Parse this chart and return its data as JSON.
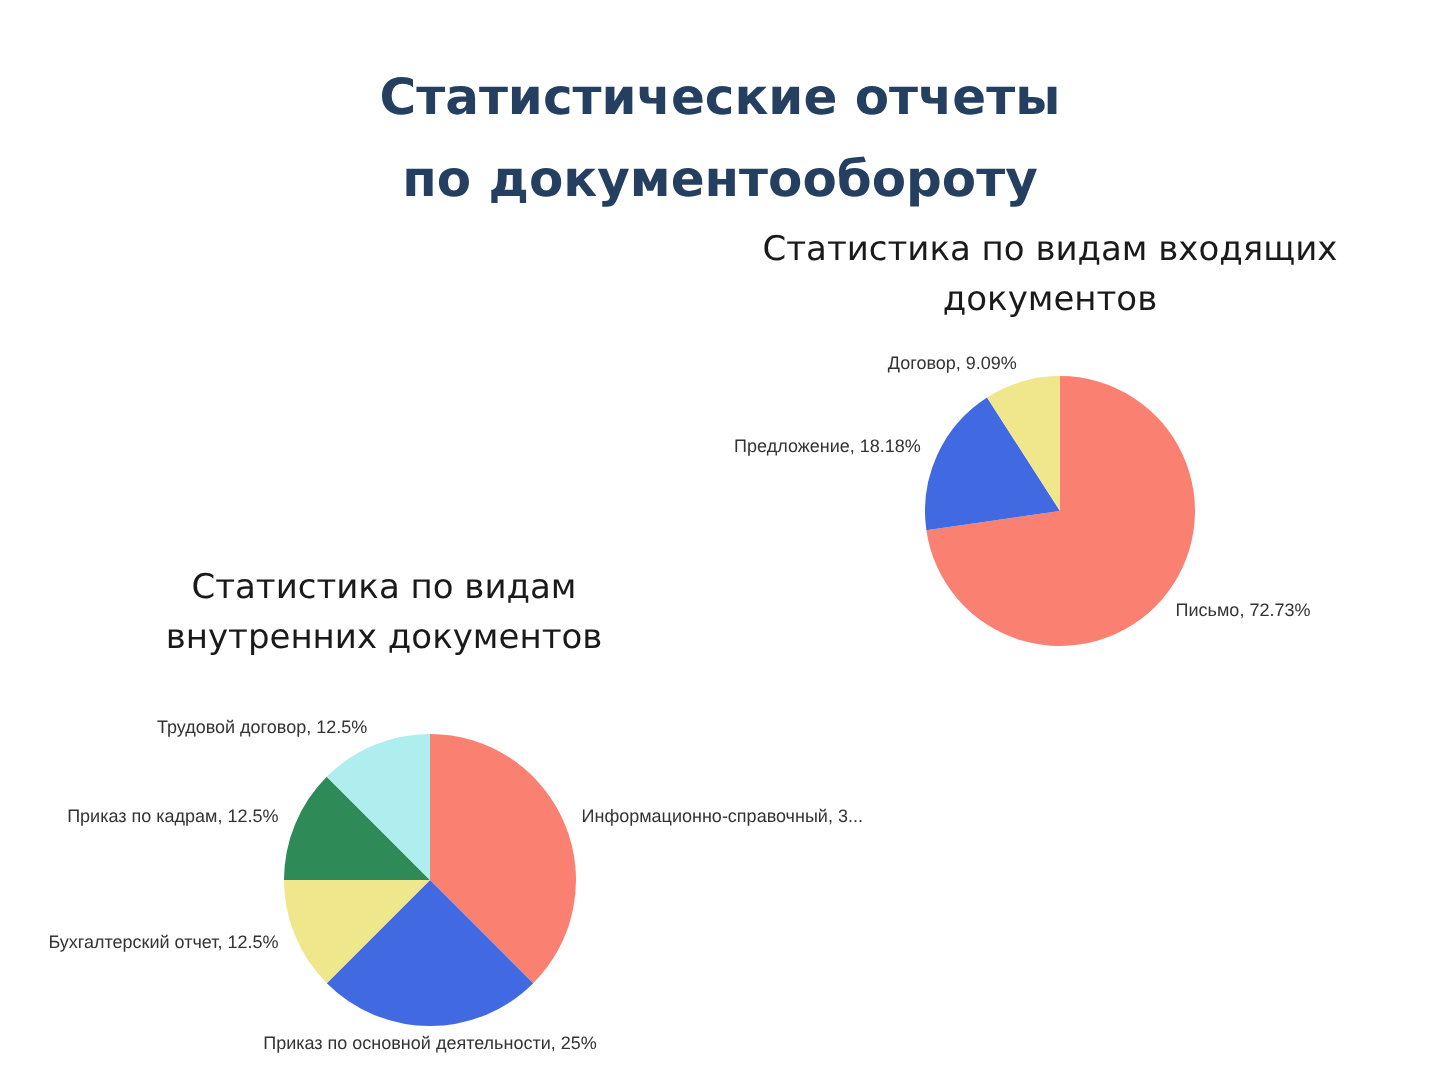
{
  "chart_data": [
    {
      "type": "other",
      "title": "Статистические отчеты по документообороту"
    },
    {
      "type": "pie",
      "title": "Статистика по видам входящих документов",
      "categories": [
        "Письмо",
        "Предложение",
        "Договор"
      ],
      "values": [
        72.73,
        18.18,
        9.09
      ],
      "colors": [
        "#fa8072",
        "#4169e1",
        "#f0e68c"
      ],
      "value_labels": [
        "72.73%",
        "18.18%",
        "9.09%"
      ]
    },
    {
      "type": "pie",
      "title": "Статистика по видам внутренних документов",
      "categories": [
        "Информационно-справочный",
        "Приказ по основной деятельности",
        "Бухгалтерский отчет",
        "Приказ по кадрам",
        "Трудовой договор"
      ],
      "values": [
        37.5,
        25,
        12.5,
        12.5,
        12.5
      ],
      "colors": [
        "#fa8072",
        "#4169e1",
        "#f0e68c",
        "#2e8b57",
        "#afeeee"
      ],
      "value_labels": [
        "3...",
        "25%",
        "12.5%",
        "12.5%",
        "12.5%"
      ]
    }
  ]
}
